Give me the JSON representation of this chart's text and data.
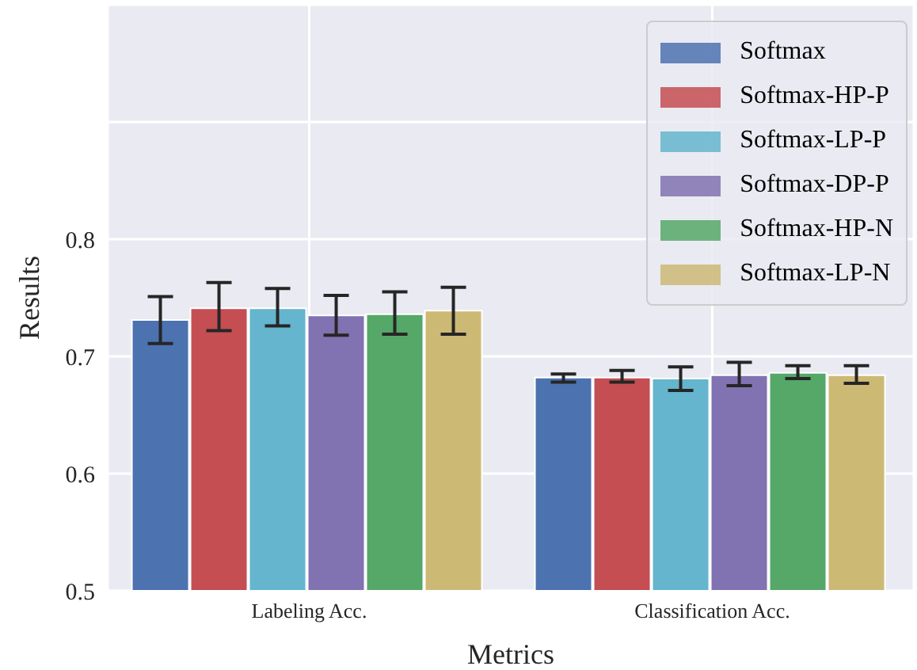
{
  "chart_data": {
    "type": "bar",
    "xlabel": "Metrics",
    "ylabel": "Results",
    "categories": [
      "Labeling Acc.",
      "Classification Acc."
    ],
    "series": [
      {
        "name": "Softmax",
        "color": "#4c72b0",
        "values": [
          0.731,
          0.682
        ],
        "errors": [
          [
            0.711,
            0.751
          ],
          [
            0.678,
            0.685
          ]
        ]
      },
      {
        "name": "Softmax-HP-P",
        "color": "#c44e52",
        "values": [
          0.741,
          0.682
        ],
        "errors": [
          [
            0.722,
            0.763
          ],
          [
            0.678,
            0.688
          ]
        ]
      },
      {
        "name": "Softmax-LP-P",
        "color": "#64b5cd",
        "values": [
          0.741,
          0.681
        ],
        "errors": [
          [
            0.726,
            0.758
          ],
          [
            0.671,
            0.691
          ]
        ]
      },
      {
        "name": "Softmax-DP-P",
        "color": "#8172b2",
        "values": [
          0.735,
          0.684
        ],
        "errors": [
          [
            0.718,
            0.752
          ],
          [
            0.675,
            0.695
          ]
        ]
      },
      {
        "name": "Softmax-HP-N",
        "color": "#55a868",
        "values": [
          0.736,
          0.686
        ],
        "errors": [
          [
            0.719,
            0.755
          ],
          [
            0.681,
            0.692
          ]
        ]
      },
      {
        "name": "Softmax-LP-N",
        "color": "#ccb974",
        "values": [
          0.739,
          0.684
        ],
        "errors": [
          [
            0.719,
            0.759
          ],
          [
            0.677,
            0.692
          ]
        ]
      }
    ],
    "ylim": [
      0.5,
      1.0
    ],
    "yticks": [
      0.5,
      0.6,
      0.7,
      0.8,
      {
        "value": 0.9,
        "label": null
      },
      {
        "value": 1.0,
        "label": null
      }
    ],
    "grid": true,
    "legend": "top right"
  }
}
